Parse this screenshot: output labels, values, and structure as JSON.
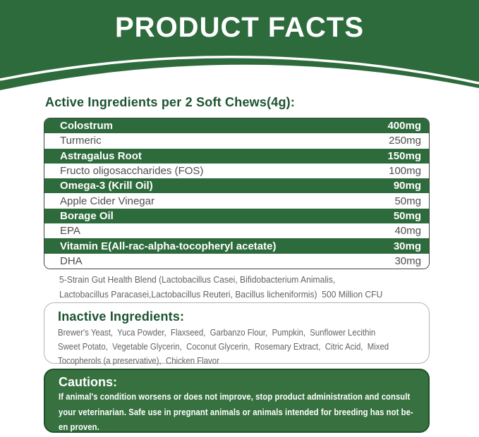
{
  "header": {
    "title": "PRODUCT FACTS"
  },
  "active": {
    "heading": "Active Ingredients per 2 Soft Chews(4g):",
    "rows": [
      {
        "name": "Colostrum",
        "amount": "400mg",
        "highlight": true
      },
      {
        "name": "Turmeric",
        "amount": "250mg",
        "highlight": false
      },
      {
        "name": "Astragalus Root",
        "amount": "150mg",
        "highlight": true
      },
      {
        "name": "Fructo oligosaccharides (FOS)",
        "amount": "100mg",
        "highlight": false
      },
      {
        "name": "Omega-3 (Krill Oil)",
        "amount": "90mg",
        "highlight": true
      },
      {
        "name": "Apple Cider Vinegar",
        "amount": "50mg",
        "highlight": false
      },
      {
        "name": "Borage Oil",
        "amount": "50mg",
        "highlight": true
      },
      {
        "name": "EPA",
        "amount": "40mg",
        "highlight": false
      },
      {
        "name": "Vitamin E(All-rac-alpha-tocopheryl acetate)",
        "amount": "30mg",
        "highlight": true
      },
      {
        "name": "DHA",
        "amount": "30mg",
        "highlight": false
      }
    ],
    "blend_lines": [
      "5-Strain Gut Health Blend (Lactobacillus Casei, Bifidobacterium Animalis,",
      "Lactobacillus Paracasei,Lactobacillus Reuteri, Bacillus licheniformis)  500 Million CFU"
    ]
  },
  "inactive": {
    "heading": "Inactive Ingredients:",
    "lines": [
      "Brewer's Yeast,  Yuca Powder,  Flaxseed,  Garbanzo Flour,  Pumpkin,  Sunflower Lecithin",
      "Sweet Potato,  Vegetable Glycerin,  Coconut Glycerin,  Rosemary Extract,  Citric Acid,  Mixed",
      "Tocopherols (a preservative),  Chicken Flavor"
    ]
  },
  "cautions": {
    "heading": "Cautions:",
    "lines": [
      "If animal's condition worsens or does not improve, stop product administration and consult",
      "your veterinarian. Safe use in pregnant animals or animals intended for breeding has not be-",
      "en proven."
    ]
  },
  "colors": {
    "green": "#2e6b3c",
    "caution_green": "#37713f",
    "caution_border": "#1e5128",
    "heading_green": "#1c5331",
    "table_border": "#3e443e",
    "box_border": "#b3b3b3",
    "row_text": "#4f4f4f",
    "muted": "#636363"
  }
}
